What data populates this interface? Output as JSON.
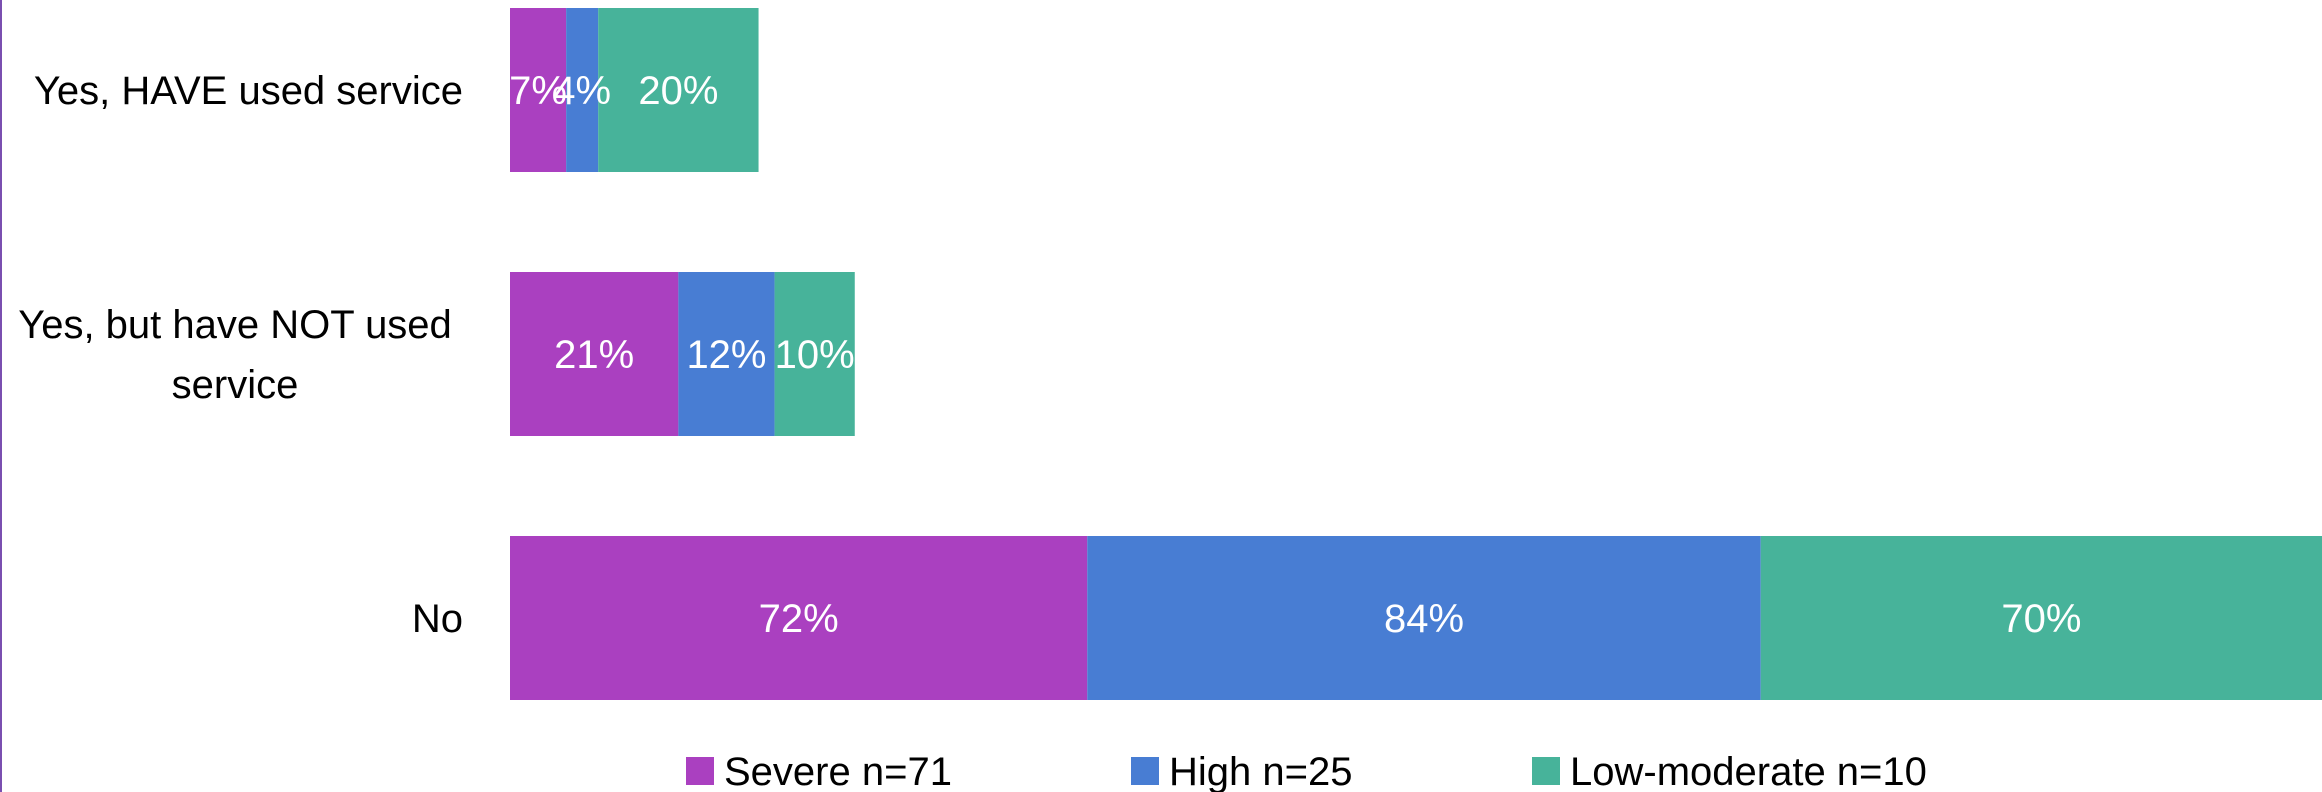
{
  "chart_data": {
    "type": "bar",
    "orientation": "horizontal",
    "stacked": true,
    "categories": [
      "Yes, HAVE used service",
      "Yes, but have NOT used service",
      "No"
    ],
    "series": [
      {
        "name": "Severe n=71",
        "color": "#aa40c0",
        "values": [
          7,
          21,
          72
        ],
        "labels": [
          "7%",
          "21%",
          "72%"
        ]
      },
      {
        "name": "High n=25",
        "color": "#487dd3",
        "values": [
          4,
          12,
          84
        ],
        "labels": [
          "4%",
          "12%",
          "84%"
        ]
      },
      {
        "name": "Low-moderate n=10",
        "color": "#47b39a",
        "values": [
          20,
          10,
          70
        ],
        "labels": [
          "20%",
          "10%",
          "70%"
        ]
      }
    ],
    "xlim": [
      0,
      226
    ],
    "grid": false,
    "legend_position": "bottom",
    "title": "",
    "xlabel": "",
    "ylabel": ""
  }
}
